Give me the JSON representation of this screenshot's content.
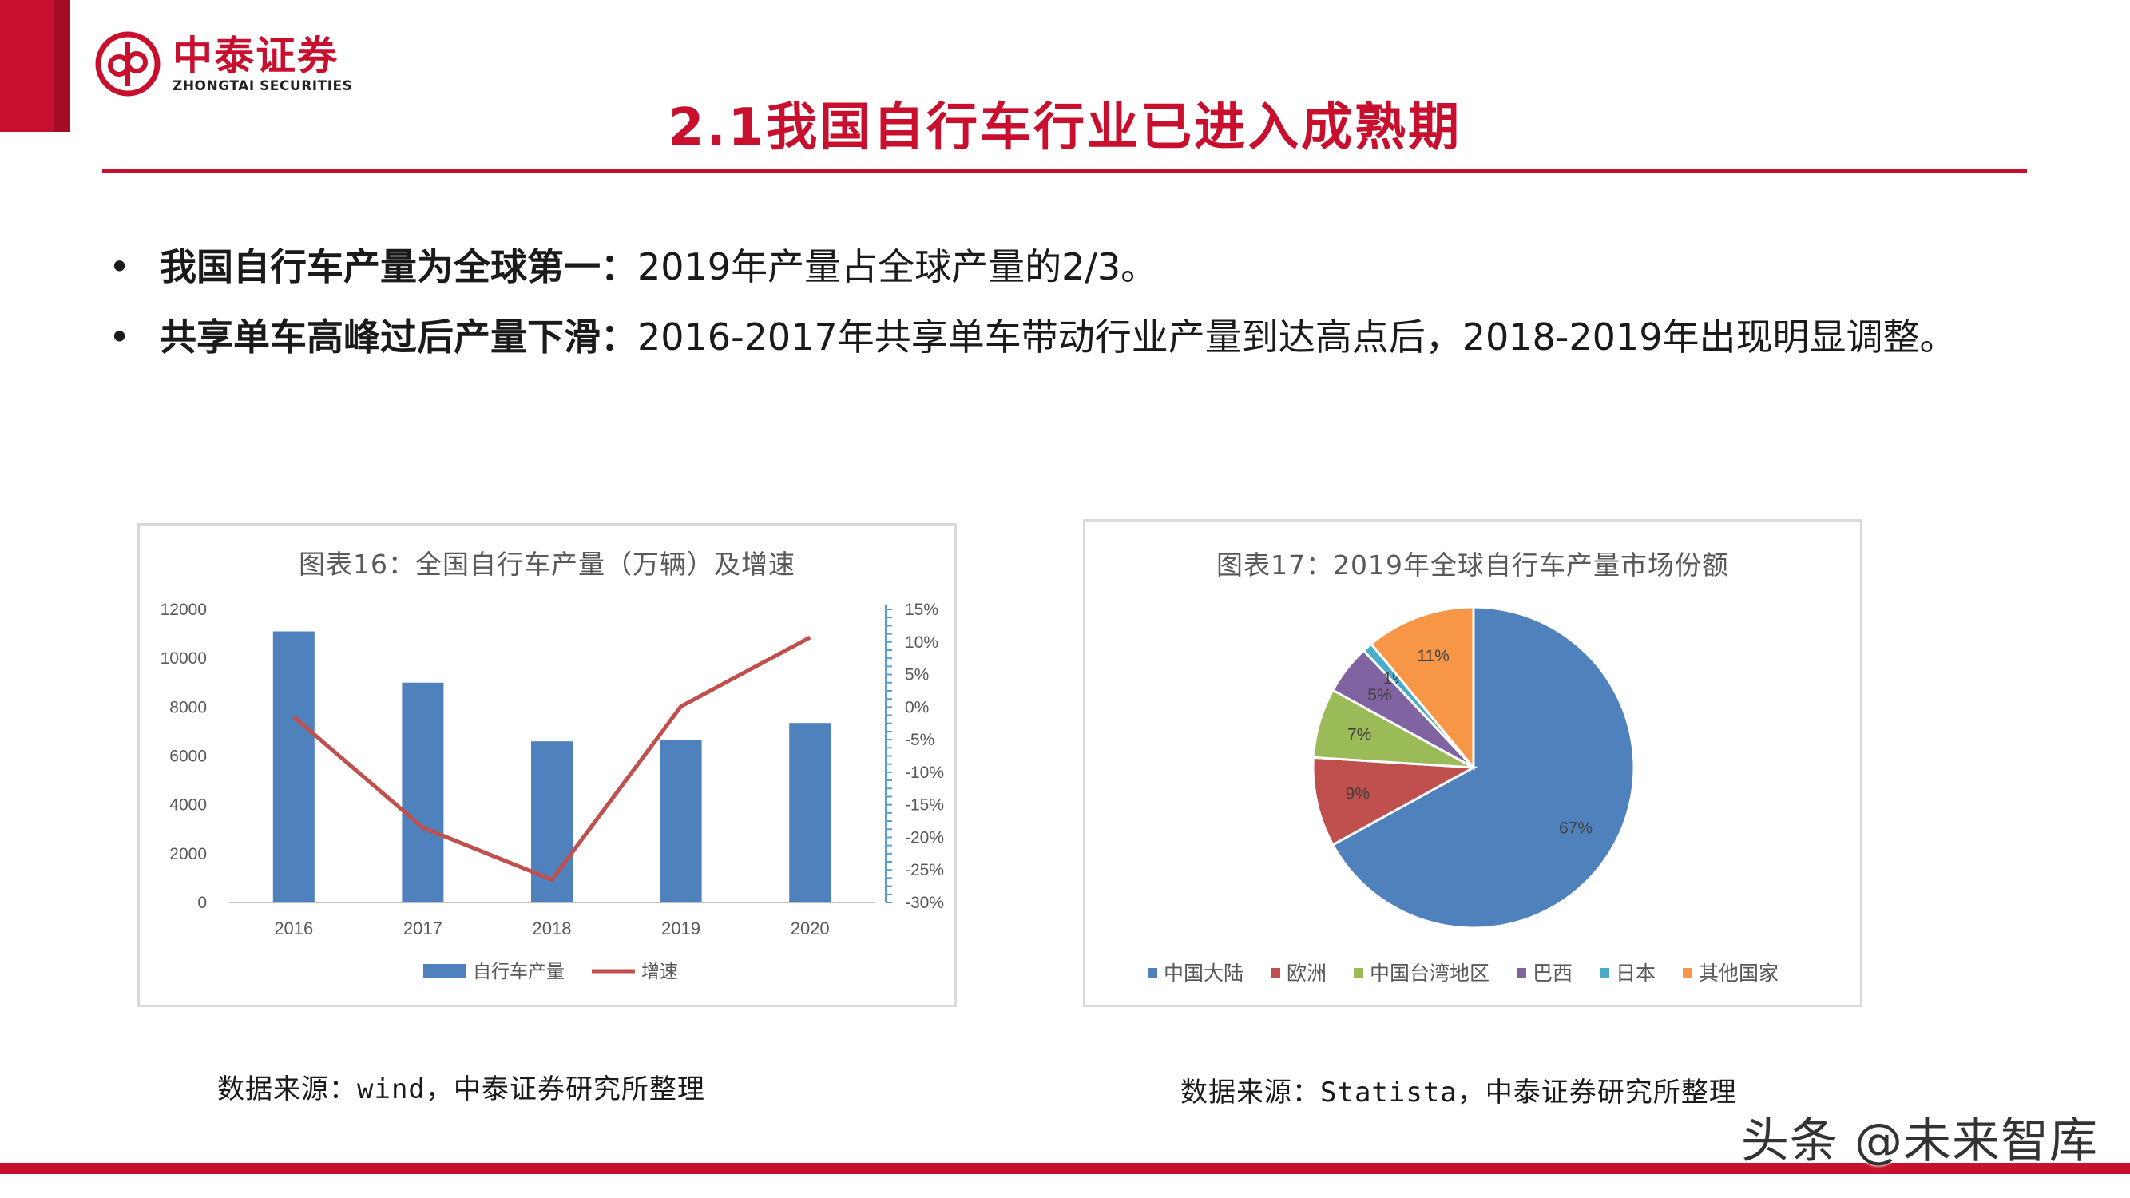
{
  "brand": {
    "name_cn": "中泰证券",
    "name_en": "ZHONGTAI SECURITIES",
    "color": "#c8102e"
  },
  "page": {
    "title": "2.1我国自行车行业已进入成熟期"
  },
  "bullets": [
    {
      "bold": "我国自行车产量为全球第一：",
      "text": "2019年产量占全球产量的2/3。"
    },
    {
      "bold": "共享单车高峰过后产量下滑：",
      "text": "2016-2017年共享单车带动行业产量到达高点后，2018-2019年出现明显调整。"
    }
  ],
  "chart_data": [
    {
      "type": "bar",
      "title": "图表16：全国自行车产量（万辆）及增速",
      "categories": [
        "2016",
        "2017",
        "2018",
        "2019",
        "2020"
      ],
      "series": [
        {
          "name": "自行车产量",
          "type": "bar",
          "axis": "left",
          "color": "#4f81bd",
          "values": [
            11100,
            9000,
            6600,
            6650,
            7350
          ]
        },
        {
          "name": "增速",
          "type": "line",
          "axis": "right",
          "color": "#c0504d",
          "values": [
            -0.015,
            -0.185,
            -0.265,
            0.001,
            0.107
          ]
        }
      ],
      "y_left": {
        "min": 0,
        "max": 12000,
        "ticks": [
          "0",
          "2000",
          "4000",
          "6000",
          "8000",
          "10000",
          "12000"
        ]
      },
      "y_right": {
        "min": -0.3,
        "max": 0.15,
        "ticks": [
          "-30%",
          "-25%",
          "-20%",
          "-15%",
          "-10%",
          "-5%",
          "0%",
          "5%",
          "10%",
          "15%"
        ]
      },
      "legend": "bottom",
      "grid": false
    },
    {
      "type": "pie",
      "title": "图表17：2019年全球自行车产量市场份额",
      "slices": [
        {
          "name": "中国大陆",
          "value": 67,
          "label": "67%",
          "color": "#4f81bd"
        },
        {
          "name": "欧洲",
          "value": 9,
          "label": "9%",
          "color": "#c0504d"
        },
        {
          "name": "中国台湾地区",
          "value": 7,
          "label": "7%",
          "color": "#9bbb59"
        },
        {
          "name": "巴西",
          "value": 5,
          "label": "5%",
          "color": "#8064a2"
        },
        {
          "name": "日本",
          "value": 1,
          "label": "1%",
          "color": "#4bacc6"
        },
        {
          "name": "其他国家",
          "value": 11,
          "label": "11%",
          "color": "#f79646"
        }
      ],
      "legend": "bottom"
    }
  ],
  "sources": {
    "left": "数据来源：wind，中泰证券研究所整理",
    "right": "数据来源：Statista，中泰证券研究所整理"
  },
  "watermark": "头条 @未来智库"
}
